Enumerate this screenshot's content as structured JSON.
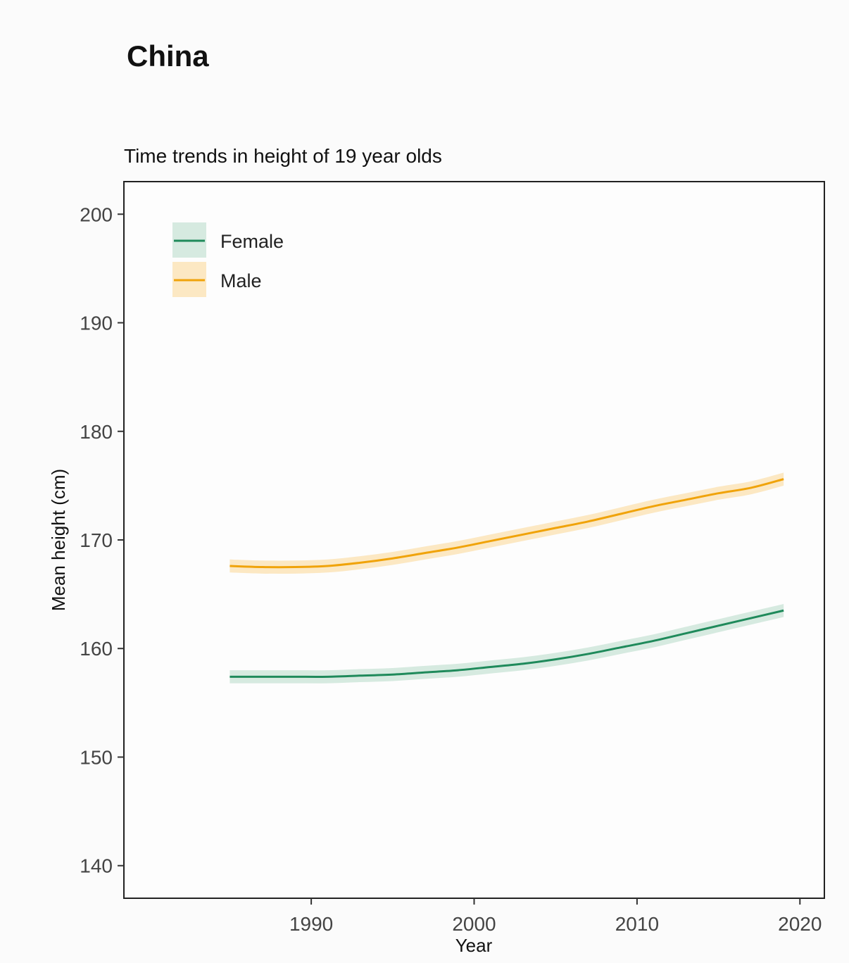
{
  "page": {
    "heading": "China"
  },
  "chart_data": {
    "type": "line",
    "title": "Time trends in height of 19 year olds",
    "xlabel": "Year",
    "ylabel": "Mean height (cm)",
    "xlim": [
      1978.5,
      2021.5
    ],
    "ylim": [
      137,
      203
    ],
    "x_ticks": [
      1990,
      2000,
      2010,
      2020
    ],
    "y_ticks": [
      140,
      150,
      160,
      170,
      180,
      190,
      200
    ],
    "legend_position": "top-left",
    "grid": false,
    "x": [
      1985,
      1987,
      1989,
      1991,
      1993,
      1995,
      1997,
      1999,
      2001,
      2003,
      2005,
      2007,
      2009,
      2011,
      2013,
      2015,
      2017,
      2019
    ],
    "series": [
      {
        "name": "Female",
        "color": "#1f8a5b",
        "band_color": "#cfe6db",
        "values": [
          157.4,
          157.4,
          157.4,
          157.4,
          157.5,
          157.6,
          157.8,
          158.0,
          158.3,
          158.6,
          159.0,
          159.5,
          160.1,
          160.7,
          161.4,
          162.1,
          162.8,
          163.5
        ],
        "band_halfwidth": 0.6
      },
      {
        "name": "Male",
        "color": "#f0a30a",
        "band_color": "#fbe4b8",
        "values": [
          167.6,
          167.5,
          167.5,
          167.6,
          167.9,
          168.3,
          168.8,
          169.3,
          169.9,
          170.5,
          171.1,
          171.7,
          172.4,
          173.1,
          173.7,
          174.3,
          174.8,
          175.6
        ],
        "band_halfwidth": 0.6
      }
    ]
  }
}
